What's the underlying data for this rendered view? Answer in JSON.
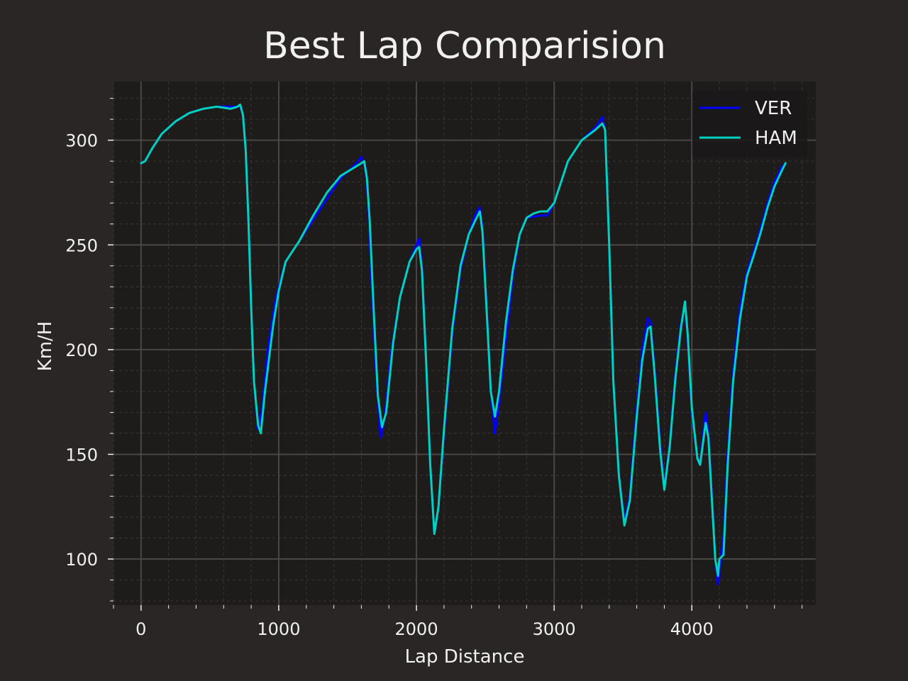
{
  "colors": {
    "figure_bg": "#292625",
    "plot_bg": "#1e1c1b",
    "grid_major": "#4a4644",
    "grid_minor": "#3a3634",
    "text": "#f0f0f0",
    "ver": "#0000ff",
    "ham": "#00d2be"
  },
  "chart_data": {
    "type": "line",
    "title": "Best Lap Comparision",
    "xlabel": "Lap Distance",
    "ylabel": "Km/H",
    "xlim": [
      -200,
      4900
    ],
    "ylim": [
      78,
      328
    ],
    "xticks": [
      0,
      1000,
      2000,
      3000,
      4000
    ],
    "yticks": [
      100,
      150,
      200,
      250,
      300
    ],
    "grid": true,
    "legend_position": "top-right",
    "series": [
      {
        "name": "VER",
        "color": "#0000ff",
        "points": [
          [
            0,
            289
          ],
          [
            30,
            290
          ],
          [
            80,
            296
          ],
          [
            150,
            303
          ],
          [
            250,
            309
          ],
          [
            350,
            313
          ],
          [
            450,
            315
          ],
          [
            550,
            316
          ],
          [
            650,
            316
          ],
          [
            720,
            316
          ],
          [
            740,
            312
          ],
          [
            760,
            295
          ],
          [
            780,
            262
          ],
          [
            800,
            220
          ],
          [
            820,
            185
          ],
          [
            850,
            162
          ],
          [
            880,
            172
          ],
          [
            920,
            200
          ],
          [
            980,
            225
          ],
          [
            1050,
            242
          ],
          [
            1150,
            252
          ],
          [
            1250,
            262
          ],
          [
            1350,
            272
          ],
          [
            1450,
            282
          ],
          [
            1550,
            288
          ],
          [
            1600,
            292
          ],
          [
            1630,
            287
          ],
          [
            1650,
            270
          ],
          [
            1680,
            225
          ],
          [
            1710,
            185
          ],
          [
            1740,
            158
          ],
          [
            1770,
            168
          ],
          [
            1820,
            200
          ],
          [
            1880,
            225
          ],
          [
            1950,
            242
          ],
          [
            2000,
            250
          ],
          [
            2020,
            253
          ],
          [
            2040,
            240
          ],
          [
            2070,
            195
          ],
          [
            2100,
            145
          ],
          [
            2130,
            112
          ],
          [
            2160,
            125
          ],
          [
            2200,
            160
          ],
          [
            2260,
            208
          ],
          [
            2320,
            238
          ],
          [
            2380,
            255
          ],
          [
            2430,
            265
          ],
          [
            2460,
            268
          ],
          [
            2480,
            258
          ],
          [
            2510,
            220
          ],
          [
            2540,
            180
          ],
          [
            2570,
            160
          ],
          [
            2600,
            175
          ],
          [
            2650,
            205
          ],
          [
            2700,
            235
          ],
          [
            2750,
            255
          ],
          [
            2800,
            263
          ],
          [
            2900,
            264
          ],
          [
            2950,
            264
          ],
          [
            3000,
            270
          ],
          [
            3050,
            280
          ],
          [
            3100,
            290
          ],
          [
            3200,
            300
          ],
          [
            3300,
            306
          ],
          [
            3350,
            311
          ],
          [
            3370,
            305
          ],
          [
            3400,
            250
          ],
          [
            3430,
            185
          ],
          [
            3470,
            140
          ],
          [
            3510,
            118
          ],
          [
            3550,
            130
          ],
          [
            3600,
            172
          ],
          [
            3640,
            200
          ],
          [
            3680,
            215
          ],
          [
            3700,
            213
          ],
          [
            3730,
            190
          ],
          [
            3770,
            155
          ],
          [
            3800,
            134
          ],
          [
            3840,
            155
          ],
          [
            3880,
            188
          ],
          [
            3920,
            212
          ],
          [
            3950,
            222
          ],
          [
            3970,
            205
          ],
          [
            4000,
            170
          ],
          [
            4040,
            148
          ],
          [
            4060,
            145
          ],
          [
            4080,
            158
          ],
          [
            4100,
            170
          ],
          [
            4120,
            160
          ],
          [
            4150,
            125
          ],
          [
            4170,
            100
          ],
          [
            4190,
            88
          ],
          [
            4210,
            100
          ],
          [
            4230,
            110
          ],
          [
            4260,
            150
          ],
          [
            4300,
            190
          ],
          [
            4350,
            220
          ],
          [
            4400,
            237
          ],
          [
            4450,
            247
          ],
          [
            4500,
            258
          ],
          [
            4550,
            270
          ],
          [
            4600,
            280
          ],
          [
            4650,
            287
          ],
          [
            4680,
            289
          ]
        ]
      },
      {
        "name": "HAM",
        "color": "#00d2be",
        "points": [
          [
            0,
            289
          ],
          [
            30,
            290
          ],
          [
            80,
            296
          ],
          [
            150,
            303
          ],
          [
            250,
            309
          ],
          [
            350,
            313
          ],
          [
            450,
            315
          ],
          [
            550,
            316
          ],
          [
            650,
            315
          ],
          [
            700,
            316
          ],
          [
            720,
            317
          ],
          [
            740,
            312
          ],
          [
            760,
            295
          ],
          [
            780,
            262
          ],
          [
            800,
            220
          ],
          [
            820,
            185
          ],
          [
            850,
            164
          ],
          [
            870,
            160
          ],
          [
            900,
            180
          ],
          [
            960,
            212
          ],
          [
            1000,
            228
          ],
          [
            1050,
            242
          ],
          [
            1150,
            252
          ],
          [
            1250,
            264
          ],
          [
            1350,
            275
          ],
          [
            1450,
            283
          ],
          [
            1550,
            287
          ],
          [
            1600,
            289
          ],
          [
            1620,
            290
          ],
          [
            1640,
            282
          ],
          [
            1660,
            262
          ],
          [
            1690,
            218
          ],
          [
            1720,
            178
          ],
          [
            1750,
            163
          ],
          [
            1780,
            170
          ],
          [
            1830,
            203
          ],
          [
            1880,
            225
          ],
          [
            1950,
            242
          ],
          [
            2000,
            248
          ],
          [
            2020,
            249
          ],
          [
            2040,
            238
          ],
          [
            2070,
            195
          ],
          [
            2100,
            145
          ],
          [
            2130,
            112
          ],
          [
            2160,
            125
          ],
          [
            2200,
            162
          ],
          [
            2260,
            210
          ],
          [
            2320,
            240
          ],
          [
            2380,
            255
          ],
          [
            2430,
            262
          ],
          [
            2460,
            266
          ],
          [
            2480,
            256
          ],
          [
            2510,
            218
          ],
          [
            2540,
            180
          ],
          [
            2570,
            168
          ],
          [
            2600,
            180
          ],
          [
            2650,
            213
          ],
          [
            2700,
            238
          ],
          [
            2750,
            255
          ],
          [
            2800,
            263
          ],
          [
            2850,
            265
          ],
          [
            2900,
            266
          ],
          [
            2950,
            266
          ],
          [
            3000,
            270
          ],
          [
            3050,
            280
          ],
          [
            3100,
            290
          ],
          [
            3200,
            300
          ],
          [
            3300,
            305
          ],
          [
            3350,
            308
          ],
          [
            3370,
            305
          ],
          [
            3400,
            250
          ],
          [
            3430,
            185
          ],
          [
            3470,
            140
          ],
          [
            3510,
            116
          ],
          [
            3550,
            128
          ],
          [
            3600,
            168
          ],
          [
            3640,
            195
          ],
          [
            3680,
            210
          ],
          [
            3700,
            211
          ],
          [
            3730,
            188
          ],
          [
            3770,
            152
          ],
          [
            3800,
            133
          ],
          [
            3840,
            154
          ],
          [
            3880,
            186
          ],
          [
            3920,
            210
          ],
          [
            3950,
            223
          ],
          [
            3970,
            207
          ],
          [
            4000,
            172
          ],
          [
            4040,
            148
          ],
          [
            4060,
            145
          ],
          [
            4080,
            155
          ],
          [
            4100,
            165
          ],
          [
            4120,
            158
          ],
          [
            4150,
            123
          ],
          [
            4170,
            100
          ],
          [
            4190,
            92
          ],
          [
            4200,
            100
          ],
          [
            4230,
            102
          ],
          [
            4260,
            145
          ],
          [
            4300,
            185
          ],
          [
            4350,
            215
          ],
          [
            4400,
            235
          ],
          [
            4450,
            245
          ],
          [
            4500,
            256
          ],
          [
            4550,
            268
          ],
          [
            4600,
            278
          ],
          [
            4650,
            285
          ],
          [
            4680,
            289
          ]
        ]
      }
    ]
  }
}
